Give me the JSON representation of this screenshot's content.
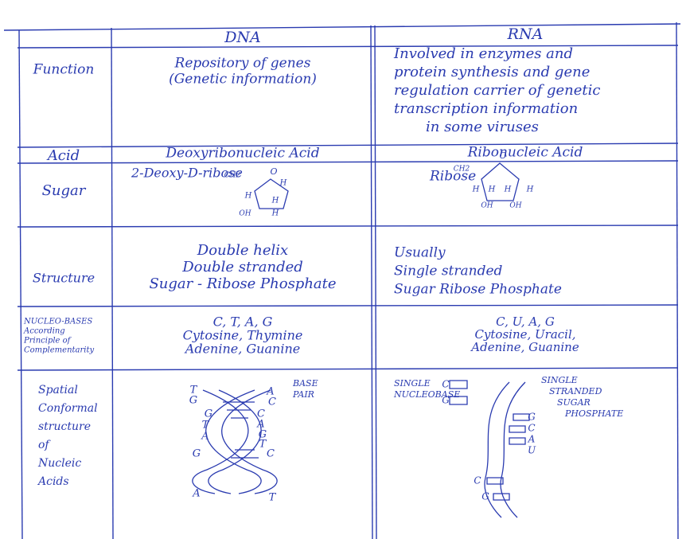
{
  "table": {
    "columns": [
      "DNA",
      "RNA"
    ],
    "rows": [
      {
        "label": [
          "Function"
        ],
        "dna": {
          "lines": [
            "Repository of genes",
            "(Genetic information)"
          ]
        },
        "rna": {
          "lines": [
            "Involved in enzymes and",
            "protein synthesis and gene",
            "regulation carrier of genetic",
            "transcription information",
            "in some viruses"
          ]
        }
      },
      {
        "label": [
          "Acid"
        ],
        "dna": {
          "lines": [
            "Deoxyribonucleic Acid"
          ]
        },
        "rna": {
          "lines": [
            "Ribonucleic Acid"
          ]
        }
      },
      {
        "label": [
          "Sugar"
        ],
        "dna": {
          "lines": [
            "2-Deoxy-D-ribose"
          ],
          "diagram": [
            "CH2",
            "O",
            "H",
            "H",
            "H",
            "OH",
            "H"
          ]
        },
        "rna": {
          "lines": [
            "Ribose"
          ],
          "diagram": [
            "CH2",
            "O",
            "H",
            "H",
            "H",
            "H",
            "OH",
            "OH"
          ]
        }
      },
      {
        "label": [
          "Structure"
        ],
        "dna": {
          "lines": [
            "Double helix",
            "Double stranded",
            "Sugar - Ribose Phosphate"
          ]
        },
        "rna": {
          "lines": [
            "Usually",
            "Single stranded",
            "Sugar Ribose Phosphate"
          ]
        }
      },
      {
        "label": [
          "NUCLEO-BASES",
          "According",
          "Principle of",
          "Complementarity"
        ],
        "dna": {
          "lines": [
            "C, T, A, G",
            "Cytosine, Thymine",
            "Adenine, Guanine"
          ]
        },
        "rna": {
          "lines": [
            "C, U, A, G",
            "Cytosine, Uracil,",
            "Adenine, Guanine"
          ]
        }
      },
      {
        "label": [
          "Spatial",
          "Conformal",
          "structure",
          "of",
          "Nucleic",
          "Acids"
        ],
        "dna": {
          "lines": [
            "BASE",
            "PAIR"
          ],
          "diagram": [
            "T",
            "G",
            "G",
            "T",
            "A",
            "G",
            "A",
            "A",
            "C",
            "C",
            "A",
            "G",
            "T",
            "C",
            "T"
          ]
        },
        "rna": {
          "lines": [
            "SINGLE",
            "NUCLEOBASE",
            "SINGLE",
            "STRANDED",
            "SUGAR",
            "PHOSPHATE"
          ],
          "diagram": [
            "C",
            "G",
            "G",
            "C",
            "A",
            "U",
            "C",
            "G"
          ]
        }
      }
    ]
  }
}
